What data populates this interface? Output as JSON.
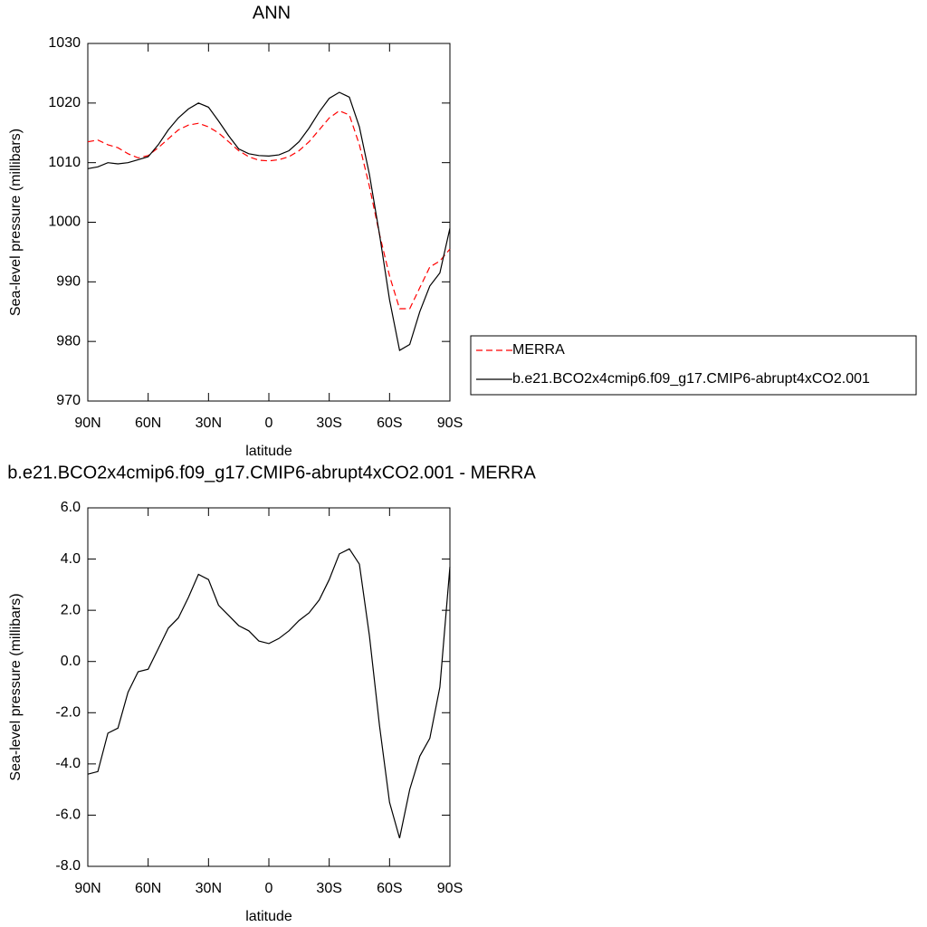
{
  "chart_data": [
    {
      "type": "line",
      "title": "ANN",
      "xlabel": "latitude",
      "ylabel": "Sea-level pressure (millibars)",
      "x": [
        90,
        85,
        80,
        75,
        70,
        65,
        60,
        55,
        50,
        45,
        40,
        35,
        30,
        25,
        20,
        15,
        10,
        5,
        0,
        -5,
        -10,
        -15,
        -20,
        -25,
        -30,
        -35,
        -40,
        -45,
        -50,
        -55,
        -60,
        -65,
        -70,
        -75,
        -80,
        -85,
        -90
      ],
      "xlim": [
        90,
        -90
      ],
      "xticks": [
        {
          "value": 90,
          "label": "90N"
        },
        {
          "value": 60,
          "label": "60N"
        },
        {
          "value": 30,
          "label": "30N"
        },
        0,
        {
          "value": -30,
          "label": "30S"
        },
        {
          "value": -60,
          "label": "60S"
        },
        {
          "value": -90,
          "label": "90S"
        }
      ],
      "ylim": [
        970,
        1030
      ],
      "yticks": [
        970,
        980,
        990,
        1000,
        1010,
        1020,
        1030
      ],
      "legend": "right",
      "series": [
        {
          "name": "MERRA",
          "color": "#ff0000",
          "line_style": "dashed",
          "values": [
            1013.5,
            1013.8,
            1013,
            1012.5,
            1011.5,
            1010.8,
            1011.2,
            1012.5,
            1014,
            1015.5,
            1016.3,
            1016.6,
            1016,
            1015,
            1013.5,
            1012,
            1011,
            1010.4,
            1010.3,
            1010.5,
            1011,
            1012,
            1013.5,
            1015.5,
            1017.5,
            1018.7,
            1018,
            1013,
            1006,
            998,
            991,
            985.5,
            985.5,
            989,
            992.5,
            993.5,
            995.5
          ]
        },
        {
          "name": "b.e21.BCO2x4cmip6.f09_g17.CMIP6-abrupt4xCO2.001",
          "color": "#000000",
          "line_style": "solid",
          "values": [
            1009,
            1009.3,
            1010,
            1009.8,
            1010,
            1010.5,
            1011,
            1013,
            1015.5,
            1017.5,
            1019,
            1020,
            1019.3,
            1017,
            1014.5,
            1012.3,
            1011.5,
            1011.2,
            1011.1,
            1011.3,
            1012,
            1013.5,
            1015.8,
            1018.5,
            1020.8,
            1021.8,
            1021,
            1016,
            1008,
            998,
            987,
            978.5,
            979.5,
            985,
            989.3,
            991.5,
            999
          ]
        }
      ]
    },
    {
      "type": "line",
      "title": "b.e21.BCO2x4cmip6.f09_g17.CMIP6-abrupt4xCO2.001 - MERRA",
      "xlabel": "latitude",
      "ylabel": "Sea-level pressure (millibars)",
      "x": [
        90,
        85,
        80,
        75,
        70,
        65,
        60,
        55,
        50,
        45,
        40,
        35,
        30,
        25,
        20,
        15,
        10,
        5,
        0,
        -5,
        -10,
        -15,
        -20,
        -25,
        -30,
        -35,
        -40,
        -45,
        -50,
        -55,
        -60,
        -65,
        -70,
        -75,
        -80,
        -85,
        -90
      ],
      "xlim": [
        90,
        -90
      ],
      "xticks": [
        {
          "value": 90,
          "label": "90N"
        },
        {
          "value": 60,
          "label": "60N"
        },
        {
          "value": 30,
          "label": "30N"
        },
        0,
        {
          "value": -30,
          "label": "30S"
        },
        {
          "value": -60,
          "label": "60S"
        },
        {
          "value": -90,
          "label": "90S"
        }
      ],
      "ylim": [
        -8,
        6
      ],
      "yticks": [
        {
          "value": -8,
          "label": "-8.0"
        },
        {
          "value": -6,
          "label": "-6.0"
        },
        {
          "value": -4,
          "label": "-4.0"
        },
        {
          "value": -2,
          "label": "-2.0"
        },
        {
          "value": 0,
          "label": "0.0"
        },
        {
          "value": 2,
          "label": "2.0"
        },
        {
          "value": 4,
          "label": "4.0"
        },
        {
          "value": 6,
          "label": "6.0"
        }
      ],
      "series": [
        {
          "color": "#000000",
          "line_style": "solid",
          "values": [
            -4.4,
            -4.3,
            -2.8,
            -2.6,
            -1.2,
            -0.4,
            -0.3,
            0.5,
            1.3,
            1.7,
            2.5,
            3.4,
            3.2,
            2.2,
            1.8,
            1.4,
            1.2,
            0.8,
            0.7,
            0.9,
            1.2,
            1.6,
            1.9,
            2.4,
            3.2,
            4.2,
            4.4,
            3.8,
            1.0,
            -2.5,
            -5.5,
            -6.9,
            -5,
            -3.7,
            -3.0,
            -1.0,
            3.7
          ]
        }
      ]
    }
  ]
}
